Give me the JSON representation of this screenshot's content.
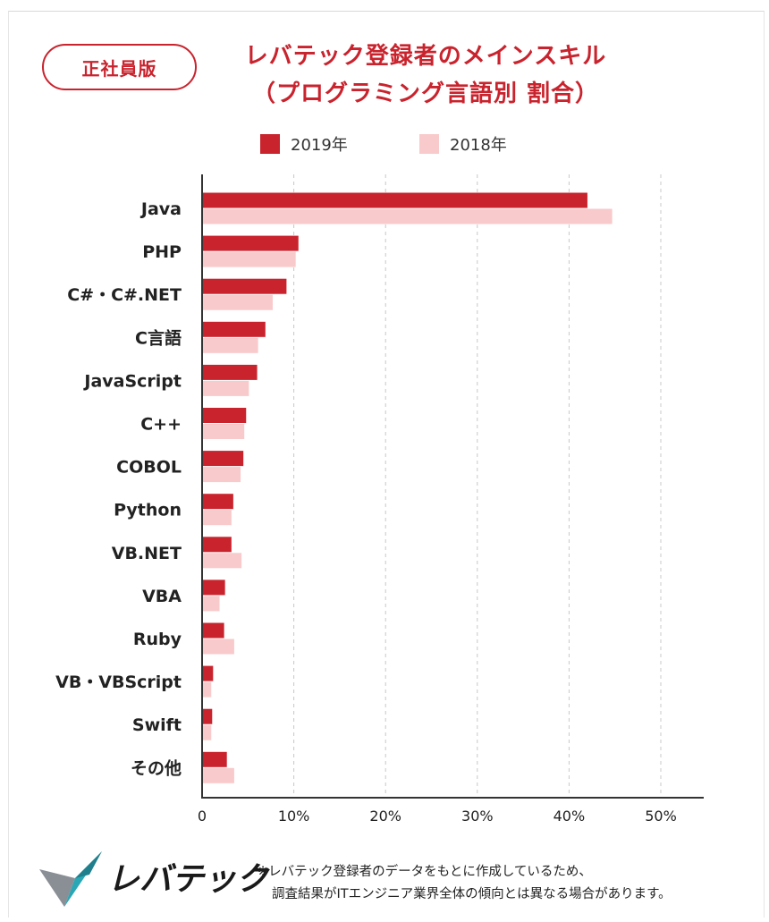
{
  "badge": "正社員版",
  "title_line1": "レバテック登録者のメインスキル",
  "title_line2": "（プログラミング言語別 割合）",
  "legend": [
    {
      "label": "2019年",
      "color": "#c9232d"
    },
    {
      "label": "2018年",
      "color": "#f8cacb"
    }
  ],
  "logo_text": "レバテック",
  "note_line1": "※レバテック登録者のデータをもとに作成しているため、",
  "note_line2": "調査結果がITエンジニア業界全体の傾向とは異なる場合があります。",
  "chart_data": {
    "type": "bar",
    "orientation": "horizontal",
    "title": "レバテック登録者のメインスキル（プログラミング言語別 割合）",
    "categories": [
      "Java",
      "PHP",
      "C#・C#.NET",
      "C言語",
      "JavaScript",
      "C++",
      "COBOL",
      "Python",
      "VB.NET",
      "VBA",
      "Ruby",
      "VB・VBScript",
      "Swift",
      "その他"
    ],
    "series": [
      {
        "name": "2019年",
        "color": "#c9232d",
        "values": [
          42.0,
          10.5,
          9.2,
          6.9,
          6.0,
          4.8,
          4.5,
          3.4,
          3.2,
          2.5,
          2.4,
          1.2,
          1.1,
          2.7
        ]
      },
      {
        "name": "2018年",
        "color": "#f8cacb",
        "values": [
          44.7,
          10.2,
          7.7,
          6.1,
          5.1,
          4.6,
          4.2,
          3.2,
          4.3,
          1.9,
          3.5,
          1.0,
          1.0,
          3.5
        ]
      }
    ],
    "xlim": [
      0,
      55
    ],
    "xticks": [
      0,
      10,
      20,
      30,
      40,
      50
    ],
    "xtick_labels": [
      "0",
      "10%",
      "20%",
      "30%",
      "40%",
      "50%"
    ],
    "grid": "vertical dashed",
    "legend_position": "top-center"
  }
}
